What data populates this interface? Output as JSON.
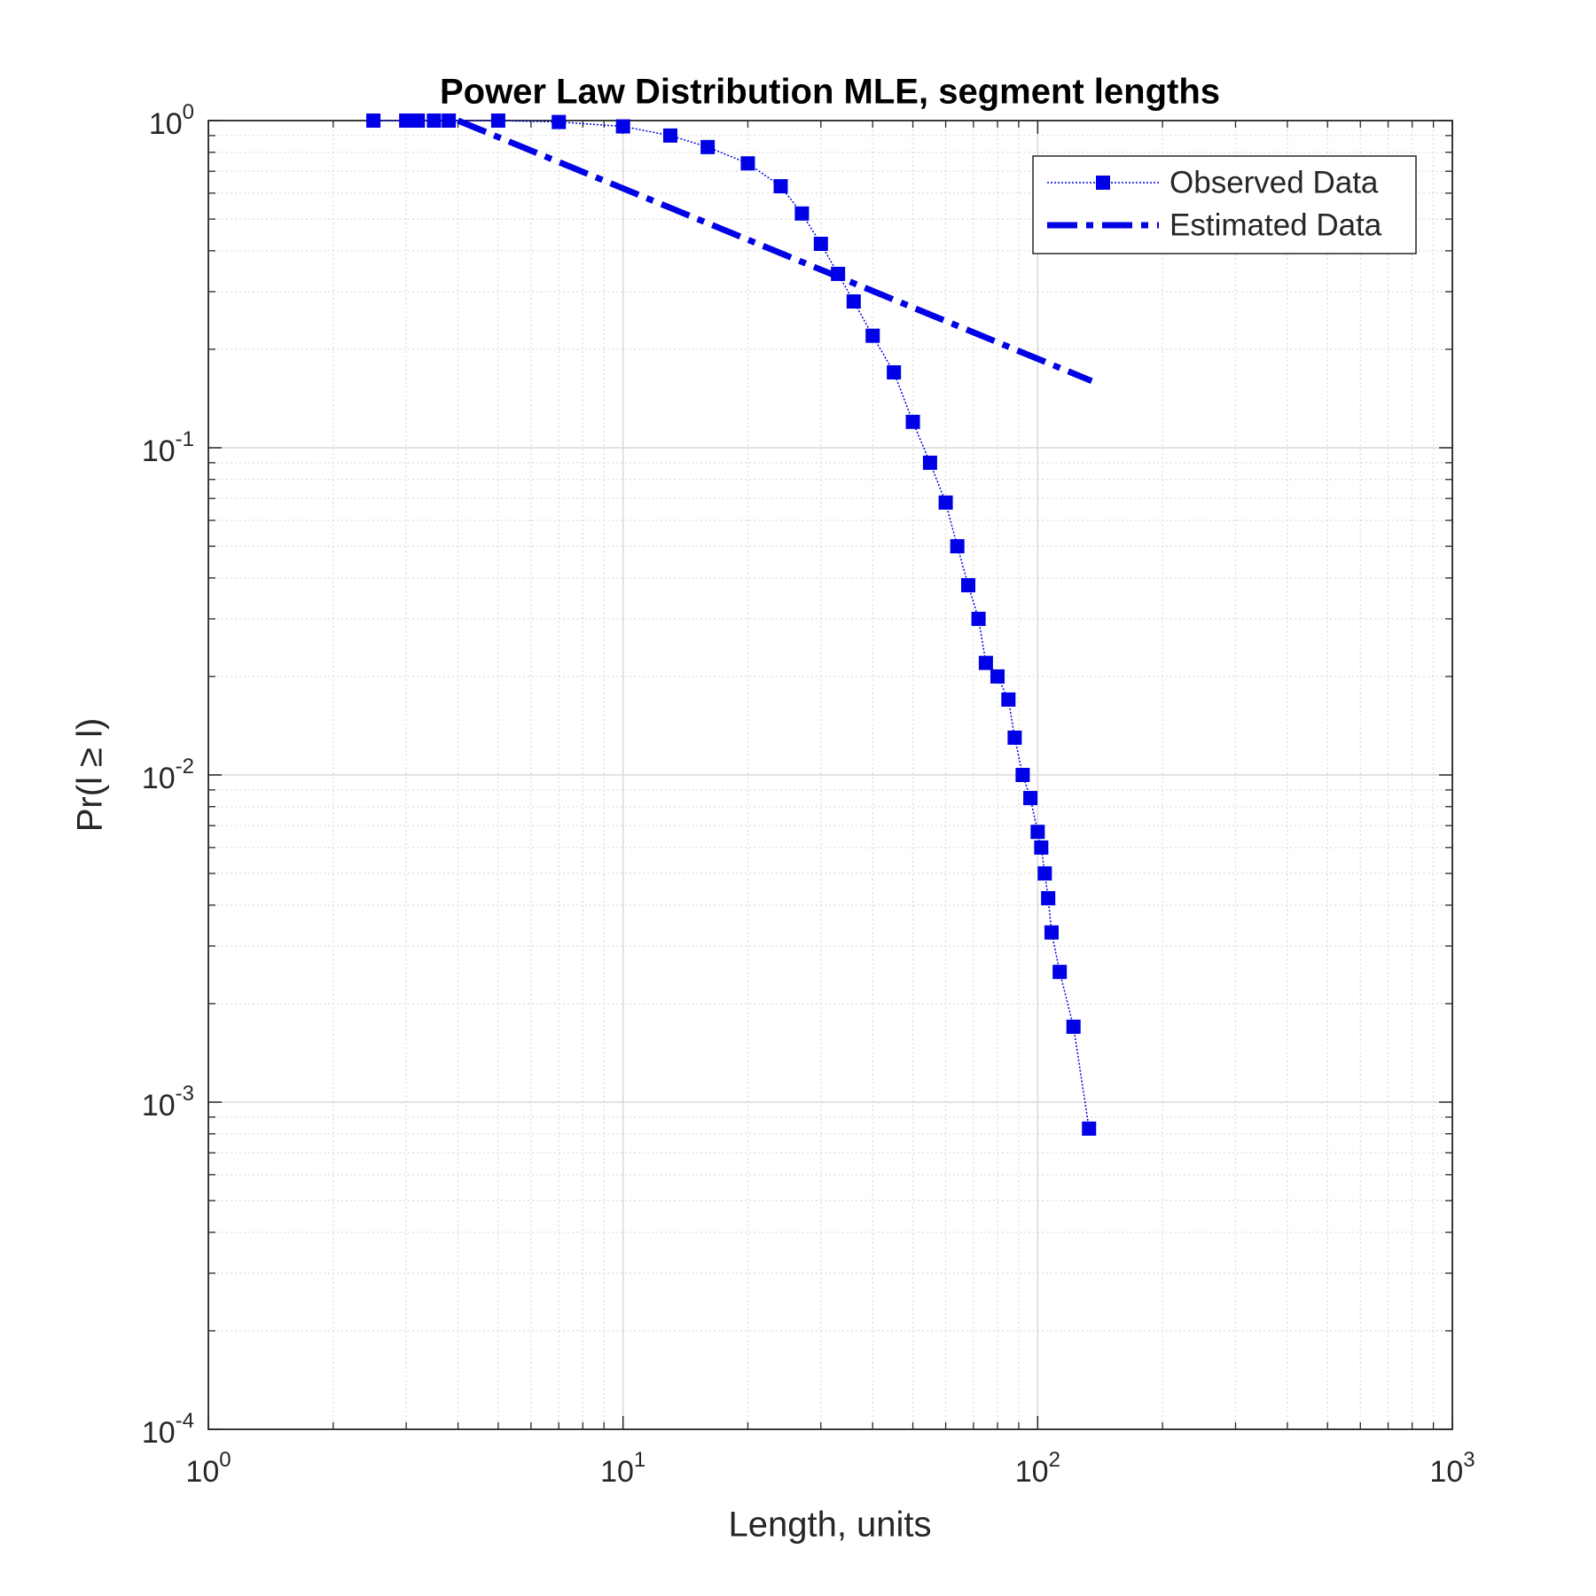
{
  "chart_data": {
    "type": "line",
    "title": "Power Law Distribution MLE, segment lengths",
    "xlabel": "Length, units",
    "ylabel": "Pr(l ≥ l)",
    "xscale": "log",
    "yscale": "log",
    "xlim": [
      1,
      1000
    ],
    "ylim": [
      0.0001,
      1
    ],
    "xticks": [
      {
        "value": 1,
        "label": "10^0"
      },
      {
        "value": 10,
        "label": "10^1"
      },
      {
        "value": 100,
        "label": "10^2"
      },
      {
        "value": 1000,
        "label": "10^3"
      }
    ],
    "yticks": [
      {
        "value": 0.0001,
        "label": "10^-4"
      },
      {
        "value": 0.001,
        "label": "10^-3"
      },
      {
        "value": 0.01,
        "label": "10^-2"
      },
      {
        "value": 0.1,
        "label": "10^-1"
      },
      {
        "value": 1,
        "label": "10^0"
      }
    ],
    "grid": true,
    "minor_grid": true,
    "legend": "upper right",
    "series": [
      {
        "name": "Observed Data",
        "color": "#0000e6",
        "style": "dotted",
        "marker": "square",
        "x": [
          2.5,
          3,
          3.2,
          3.5,
          3.8,
          5,
          7,
          10,
          13,
          16,
          20,
          24,
          27,
          30,
          33,
          36,
          40,
          45,
          50,
          55,
          60,
          64,
          68,
          72,
          75,
          80,
          85,
          88,
          92,
          96,
          100,
          102,
          104,
          106,
          108,
          113,
          122,
          133
        ],
        "values": [
          1,
          1,
          1,
          1,
          1,
          1,
          0.99,
          0.96,
          0.9,
          0.83,
          0.74,
          0.63,
          0.52,
          0.42,
          0.34,
          0.28,
          0.22,
          0.17,
          0.12,
          0.09,
          0.068,
          0.05,
          0.038,
          0.03,
          0.022,
          0.02,
          0.017,
          0.013,
          0.01,
          0.0085,
          0.0067,
          0.006,
          0.005,
          0.0042,
          0.0033,
          0.0025,
          0.0017,
          0.00083
        ]
      },
      {
        "name": "Estimated Data",
        "color": "#0000e6",
        "style": "dashdot",
        "marker": "none",
        "x": [
          4,
          135
        ],
        "values": [
          1,
          0.16
        ]
      }
    ]
  }
}
